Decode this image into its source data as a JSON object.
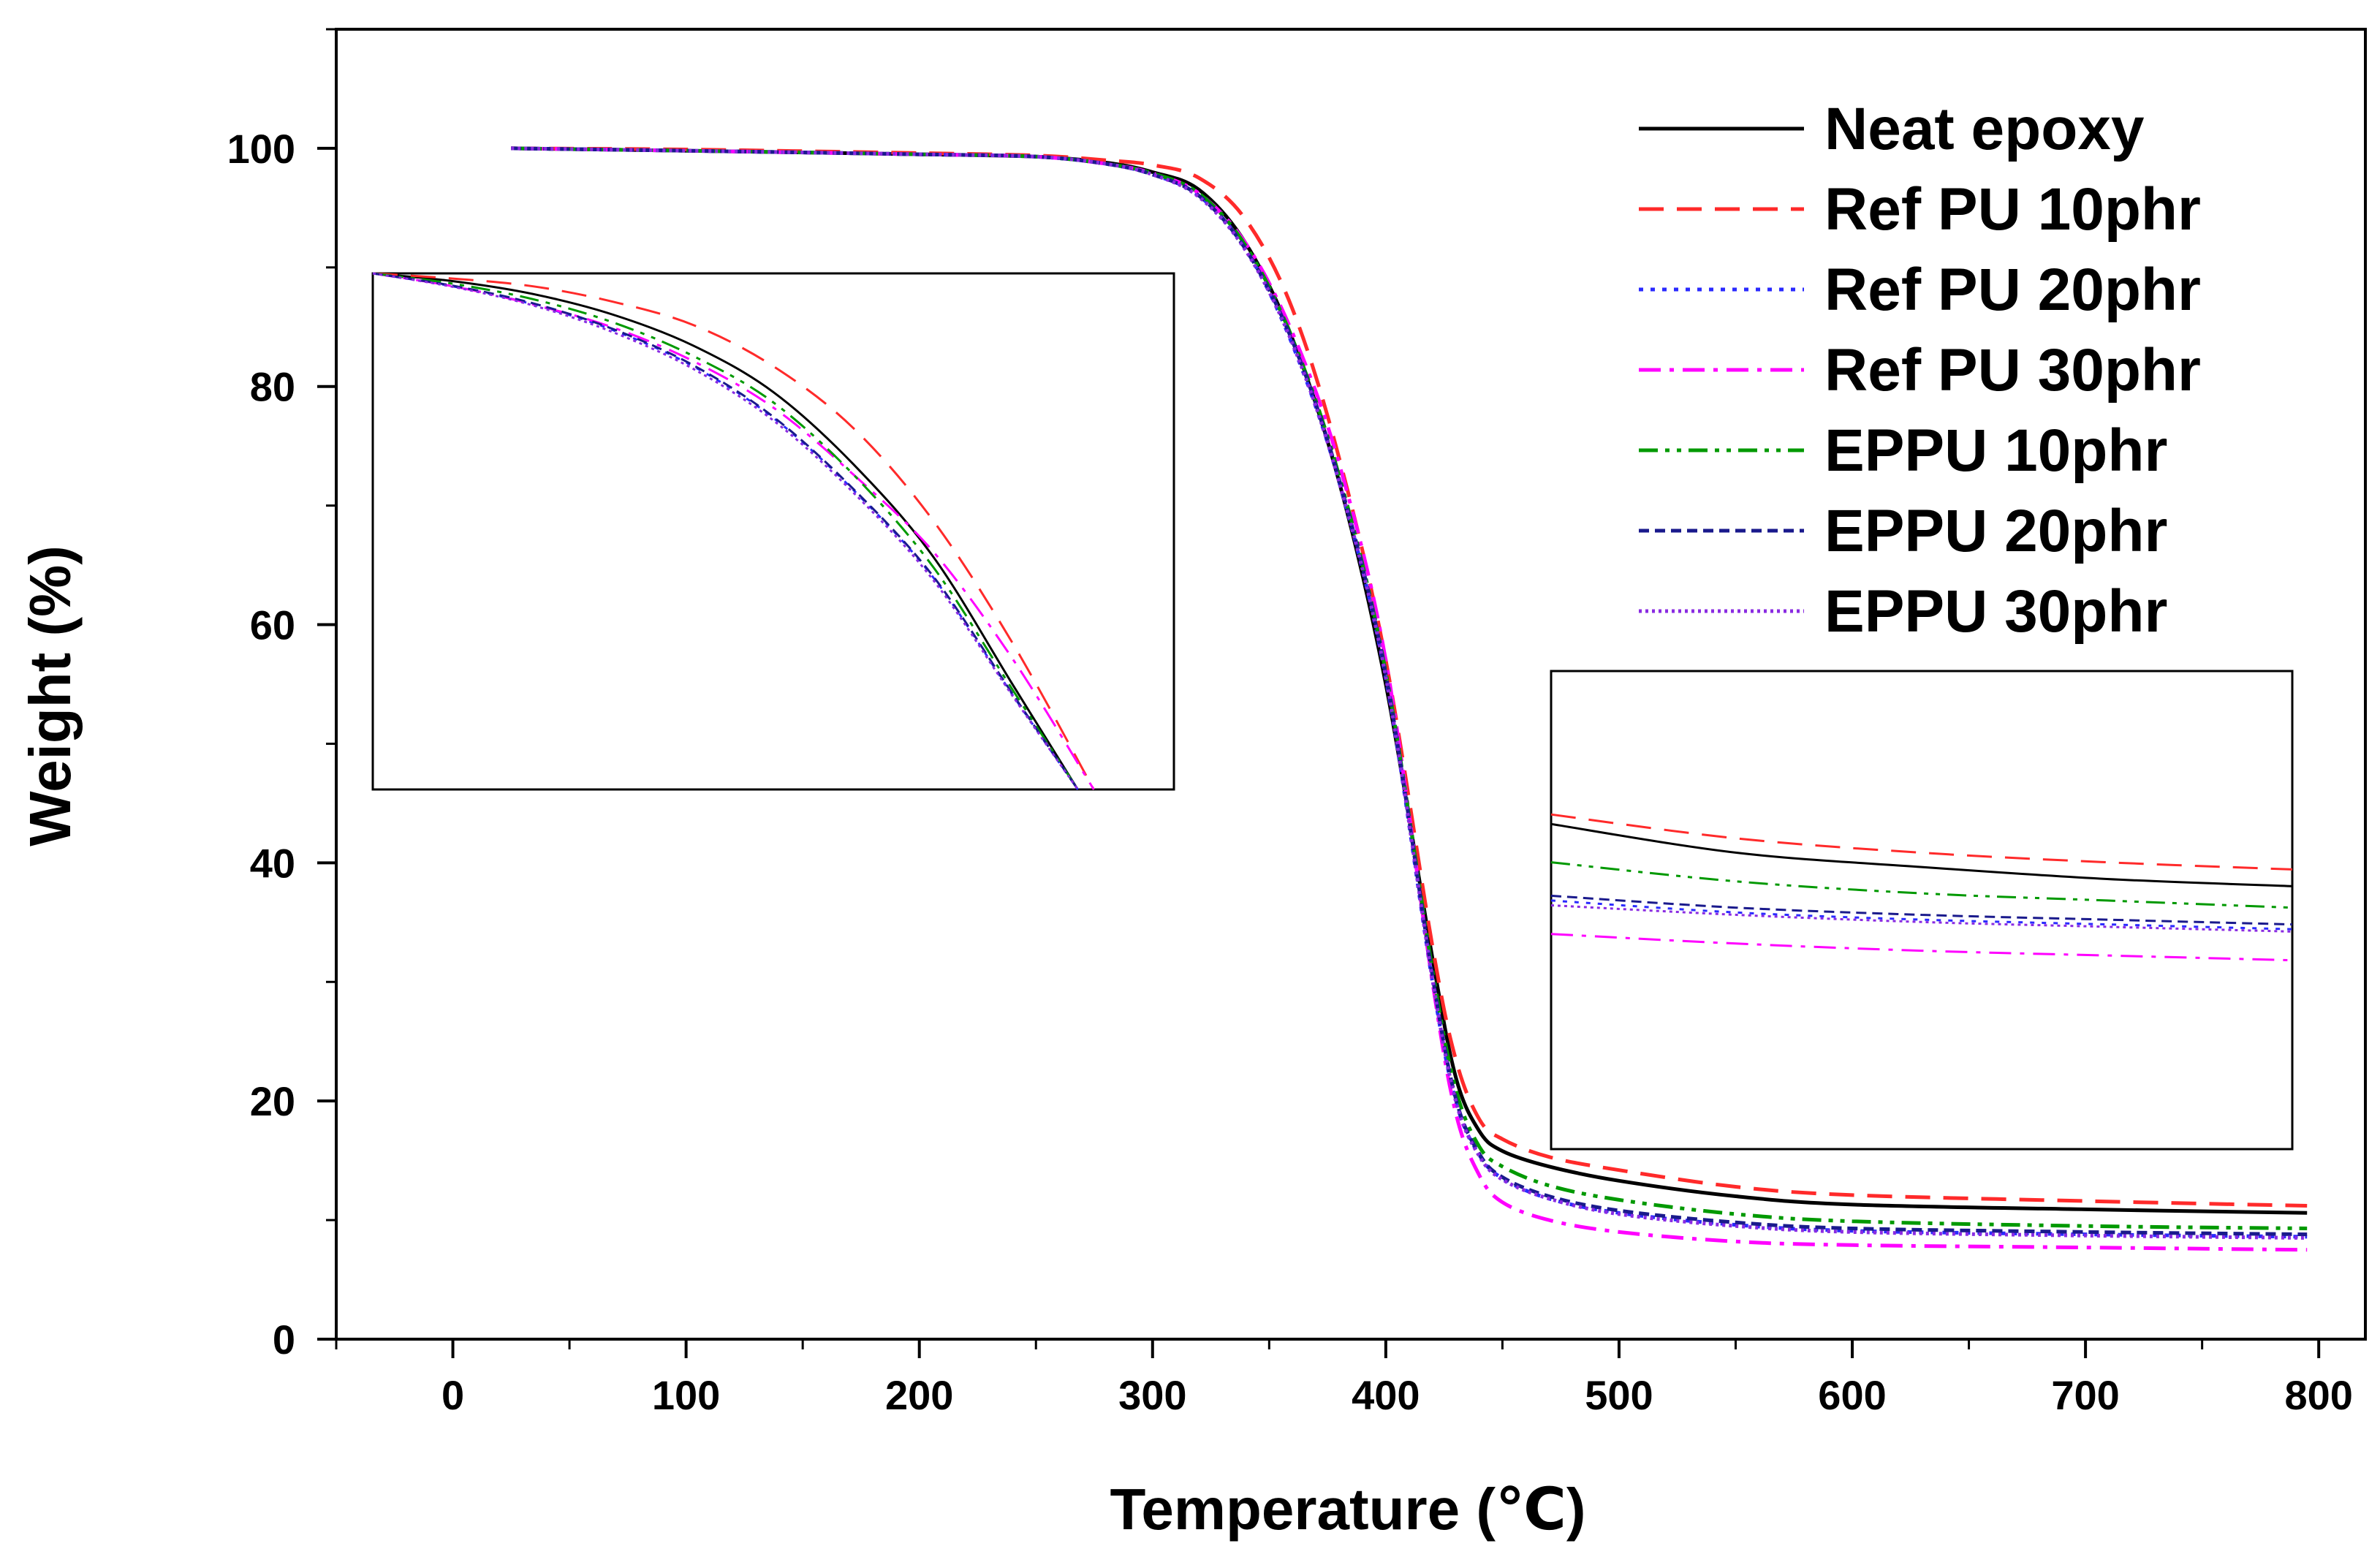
{
  "chart_data": {
    "type": "line",
    "title": "",
    "xlabel": "Temperature (℃)",
    "ylabel": "Weight (%)",
    "xlim": [
      -50,
      820
    ],
    "ylim": [
      0,
      110
    ],
    "xticks": [
      0,
      100,
      200,
      300,
      400,
      500,
      600,
      700,
      800
    ],
    "yticks": [
      0,
      20,
      40,
      60,
      80,
      100
    ],
    "xtick_labels": [
      "0",
      "100",
      "200",
      "300",
      "400",
      "500",
      "600",
      "700",
      "800"
    ],
    "ytick_labels": [
      "0",
      "20",
      "40",
      "60",
      "80",
      "100"
    ],
    "grid": false,
    "legend_position": "top-right",
    "series": [
      {
        "name": "Neat epoxy",
        "color": "#000000",
        "dash": "solid",
        "points": [
          [
            25,
            100
          ],
          [
            100,
            99.8
          ],
          [
            200,
            99.5
          ],
          [
            250,
            99.3
          ],
          [
            280,
            98.8
          ],
          [
            300,
            98.0
          ],
          [
            320,
            96.5
          ],
          [
            340,
            92
          ],
          [
            360,
            84
          ],
          [
            380,
            72
          ],
          [
            400,
            55
          ],
          [
            420,
            32
          ],
          [
            430,
            22
          ],
          [
            440,
            17.5
          ],
          [
            450,
            15.8
          ],
          [
            470,
            14.5
          ],
          [
            500,
            13.3
          ],
          [
            550,
            12
          ],
          [
            600,
            11.3
          ],
          [
            700,
            10.9
          ],
          [
            795,
            10.6
          ]
        ]
      },
      {
        "name": "Ref PU 10phr",
        "color": "#ff2a2a",
        "dash": "long-dash",
        "points": [
          [
            25,
            100
          ],
          [
            100,
            99.9
          ],
          [
            200,
            99.6
          ],
          [
            250,
            99.4
          ],
          [
            280,
            99.0
          ],
          [
            300,
            98.6
          ],
          [
            320,
            97.5
          ],
          [
            340,
            94
          ],
          [
            360,
            86.5
          ],
          [
            380,
            74
          ],
          [
            400,
            57
          ],
          [
            420,
            33
          ],
          [
            430,
            23.5
          ],
          [
            440,
            18.5
          ],
          [
            450,
            16.8
          ],
          [
            470,
            15.3
          ],
          [
            500,
            14.2
          ],
          [
            550,
            12.8
          ],
          [
            600,
            12.1
          ],
          [
            700,
            11.6
          ],
          [
            795,
            11.2
          ]
        ]
      },
      {
        "name": "Ref PU 20phr",
        "color": "#2a2aff",
        "dash": "dot",
        "points": [
          [
            25,
            100
          ],
          [
            100,
            99.8
          ],
          [
            200,
            99.5
          ],
          [
            250,
            99.3
          ],
          [
            280,
            98.7
          ],
          [
            300,
            97.8
          ],
          [
            320,
            96.0
          ],
          [
            340,
            91.5
          ],
          [
            360,
            83.5
          ],
          [
            380,
            72
          ],
          [
            400,
            55.5
          ],
          [
            420,
            30
          ],
          [
            430,
            20
          ],
          [
            440,
            15.5
          ],
          [
            450,
            13.5
          ],
          [
            470,
            11.8
          ],
          [
            500,
            10.6
          ],
          [
            550,
            9.6
          ],
          [
            600,
            9.1
          ],
          [
            700,
            8.8
          ],
          [
            795,
            8.6
          ]
        ]
      },
      {
        "name": "Ref PU 30phr",
        "color": "#ff00ff",
        "dash": "dash-dot",
        "points": [
          [
            25,
            100
          ],
          [
            100,
            99.8
          ],
          [
            200,
            99.5
          ],
          [
            250,
            99.3
          ],
          [
            280,
            98.7
          ],
          [
            300,
            97.9
          ],
          [
            320,
            96.2
          ],
          [
            340,
            92
          ],
          [
            360,
            84.5
          ],
          [
            380,
            73.5
          ],
          [
            400,
            57
          ],
          [
            420,
            30
          ],
          [
            430,
            19
          ],
          [
            440,
            13.8
          ],
          [
            450,
            11.5
          ],
          [
            470,
            10.0
          ],
          [
            500,
            9.0
          ],
          [
            550,
            8.2
          ],
          [
            600,
            7.9
          ],
          [
            700,
            7.7
          ],
          [
            795,
            7.5
          ]
        ]
      },
      {
        "name": "EPPU 10phr",
        "color": "#009900",
        "dash": "dash-dot-dot",
        "points": [
          [
            25,
            100
          ],
          [
            100,
            99.8
          ],
          [
            200,
            99.5
          ],
          [
            250,
            99.3
          ],
          [
            280,
            98.7
          ],
          [
            300,
            97.9
          ],
          [
            320,
            96.2
          ],
          [
            340,
            91.8
          ],
          [
            360,
            84
          ],
          [
            380,
            72.5
          ],
          [
            400,
            56
          ],
          [
            420,
            31
          ],
          [
            430,
            21
          ],
          [
            440,
            16.2
          ],
          [
            450,
            14.5
          ],
          [
            470,
            12.9
          ],
          [
            500,
            11.7
          ],
          [
            550,
            10.5
          ],
          [
            600,
            9.9
          ],
          [
            700,
            9.5
          ],
          [
            795,
            9.3
          ]
        ]
      },
      {
        "name": "EPPU 20phr",
        "color": "#1a1a8c",
        "dash": "short-dash",
        "points": [
          [
            25,
            100
          ],
          [
            100,
            99.8
          ],
          [
            200,
            99.5
          ],
          [
            250,
            99.3
          ],
          [
            280,
            98.7
          ],
          [
            300,
            97.8
          ],
          [
            320,
            96.0
          ],
          [
            340,
            91.5
          ],
          [
            360,
            83.8
          ],
          [
            380,
            72.2
          ],
          [
            400,
            55.8
          ],
          [
            420,
            30.5
          ],
          [
            430,
            20.2
          ],
          [
            440,
            15.6
          ],
          [
            450,
            13.6
          ],
          [
            470,
            12.0
          ],
          [
            500,
            10.8
          ],
          [
            550,
            9.8
          ],
          [
            600,
            9.3
          ],
          [
            700,
            9.0
          ],
          [
            795,
            8.8
          ]
        ]
      },
      {
        "name": "EPPU 30phr",
        "color": "#8a2be2",
        "dash": "fine-dot",
        "points": [
          [
            25,
            100
          ],
          [
            100,
            99.8
          ],
          [
            200,
            99.5
          ],
          [
            250,
            99.3
          ],
          [
            280,
            98.7
          ],
          [
            300,
            97.8
          ],
          [
            320,
            95.9
          ],
          [
            340,
            91.4
          ],
          [
            360,
            83.6
          ],
          [
            380,
            72
          ],
          [
            400,
            55.6
          ],
          [
            420,
            30.2
          ],
          [
            430,
            20
          ],
          [
            440,
            15.4
          ],
          [
            450,
            13.4
          ],
          [
            470,
            11.8
          ],
          [
            500,
            10.5
          ],
          [
            550,
            9.5
          ],
          [
            600,
            9.0
          ],
          [
            700,
            8.7
          ],
          [
            795,
            8.5
          ]
        ]
      }
    ],
    "insets": [
      {
        "name": "early-degradation-zoom",
        "description_key": "inset-left",
        "series_points": {
          "Neat epoxy": [
            [
              0,
              1
            ],
            [
              0.1,
              0.985
            ],
            [
              0.2,
              0.96
            ],
            [
              0.3,
              0.92
            ],
            [
              0.4,
              0.86
            ],
            [
              0.5,
              0.77
            ],
            [
              0.6,
              0.63
            ],
            [
              0.7,
              0.45
            ],
            [
              0.8,
              0.2
            ],
            [
              0.88,
              0
            ]
          ],
          "Ref PU 10phr": [
            [
              0,
              1
            ],
            [
              0.1,
              0.99
            ],
            [
              0.2,
              0.975
            ],
            [
              0.3,
              0.945
            ],
            [
              0.4,
              0.9
            ],
            [
              0.5,
              0.82
            ],
            [
              0.6,
              0.7
            ],
            [
              0.7,
              0.52
            ],
            [
              0.8,
              0.28
            ],
            [
              0.9,
              0
            ]
          ],
          "Ref PU 20phr": [
            [
              0,
              1
            ],
            [
              0.1,
              0.975
            ],
            [
              0.2,
              0.94
            ],
            [
              0.3,
              0.89
            ],
            [
              0.4,
              0.82
            ],
            [
              0.5,
              0.72
            ],
            [
              0.6,
              0.58
            ],
            [
              0.7,
              0.41
            ],
            [
              0.8,
              0.18
            ],
            [
              0.88,
              0
            ]
          ],
          "Ref PU 30phr": [
            [
              0,
              1
            ],
            [
              0.1,
              0.975
            ],
            [
              0.2,
              0.94
            ],
            [
              0.3,
              0.895
            ],
            [
              0.4,
              0.83
            ],
            [
              0.5,
              0.74
            ],
            [
              0.6,
              0.61
            ],
            [
              0.7,
              0.46
            ],
            [
              0.8,
              0.25
            ],
            [
              0.9,
              0
            ]
          ],
          "EPPU 10phr": [
            [
              0,
              1
            ],
            [
              0.1,
              0.98
            ],
            [
              0.2,
              0.95
            ],
            [
              0.3,
              0.905
            ],
            [
              0.4,
              0.84
            ],
            [
              0.5,
              0.75
            ],
            [
              0.6,
              0.61
            ],
            [
              0.7,
              0.43
            ],
            [
              0.8,
              0.19
            ],
            [
              0.88,
              0
            ]
          ],
          "EPPU 20phr": [
            [
              0,
              1
            ],
            [
              0.1,
              0.976
            ],
            [
              0.2,
              0.942
            ],
            [
              0.3,
              0.892
            ],
            [
              0.4,
              0.822
            ],
            [
              0.5,
              0.722
            ],
            [
              0.6,
              0.582
            ],
            [
              0.7,
              0.412
            ],
            [
              0.8,
              0.182
            ],
            [
              0.88,
              0
            ]
          ],
          "EPPU 30phr": [
            [
              0,
              1
            ],
            [
              0.1,
              0.974
            ],
            [
              0.2,
              0.938
            ],
            [
              0.3,
              0.886
            ],
            [
              0.4,
              0.815
            ],
            [
              0.5,
              0.715
            ],
            [
              0.6,
              0.575
            ],
            [
              0.7,
              0.405
            ],
            [
              0.8,
              0.178
            ],
            [
              0.88,
              0
            ]
          ]
        }
      },
      {
        "name": "char-residue-zoom",
        "description_key": "inset-right",
        "series_points": {
          "Neat epoxy": [
            [
              0,
              0.68
            ],
            [
              0.25,
              0.62
            ],
            [
              0.5,
              0.59
            ],
            [
              0.75,
              0.565
            ],
            [
              1,
              0.55
            ]
          ],
          "Ref PU 10phr": [
            [
              0,
              0.7
            ],
            [
              0.25,
              0.65
            ],
            [
              0.5,
              0.62
            ],
            [
              0.75,
              0.6
            ],
            [
              1,
              0.585
            ]
          ],
          "Ref PU 20phr": [
            [
              0,
              0.52
            ],
            [
              0.25,
              0.495
            ],
            [
              0.5,
              0.48
            ],
            [
              0.75,
              0.47
            ],
            [
              1,
              0.46
            ]
          ],
          "Ref PU 30phr": [
            [
              0,
              0.45
            ],
            [
              0.25,
              0.43
            ],
            [
              0.5,
              0.415
            ],
            [
              0.75,
              0.405
            ],
            [
              1,
              0.395
            ]
          ],
          "EPPU 10phr": [
            [
              0,
              0.6
            ],
            [
              0.25,
              0.56
            ],
            [
              0.5,
              0.535
            ],
            [
              0.75,
              0.52
            ],
            [
              1,
              0.505
            ]
          ],
          "EPPU 20phr": [
            [
              0,
              0.53
            ],
            [
              0.25,
              0.505
            ],
            [
              0.5,
              0.49
            ],
            [
              0.75,
              0.48
            ],
            [
              1,
              0.47
            ]
          ],
          "EPPU 30phr": [
            [
              0,
              0.51
            ],
            [
              0.25,
              0.49
            ],
            [
              0.5,
              0.475
            ],
            [
              0.75,
              0.465
            ],
            [
              1,
              0.455
            ]
          ]
        }
      }
    ]
  }
}
